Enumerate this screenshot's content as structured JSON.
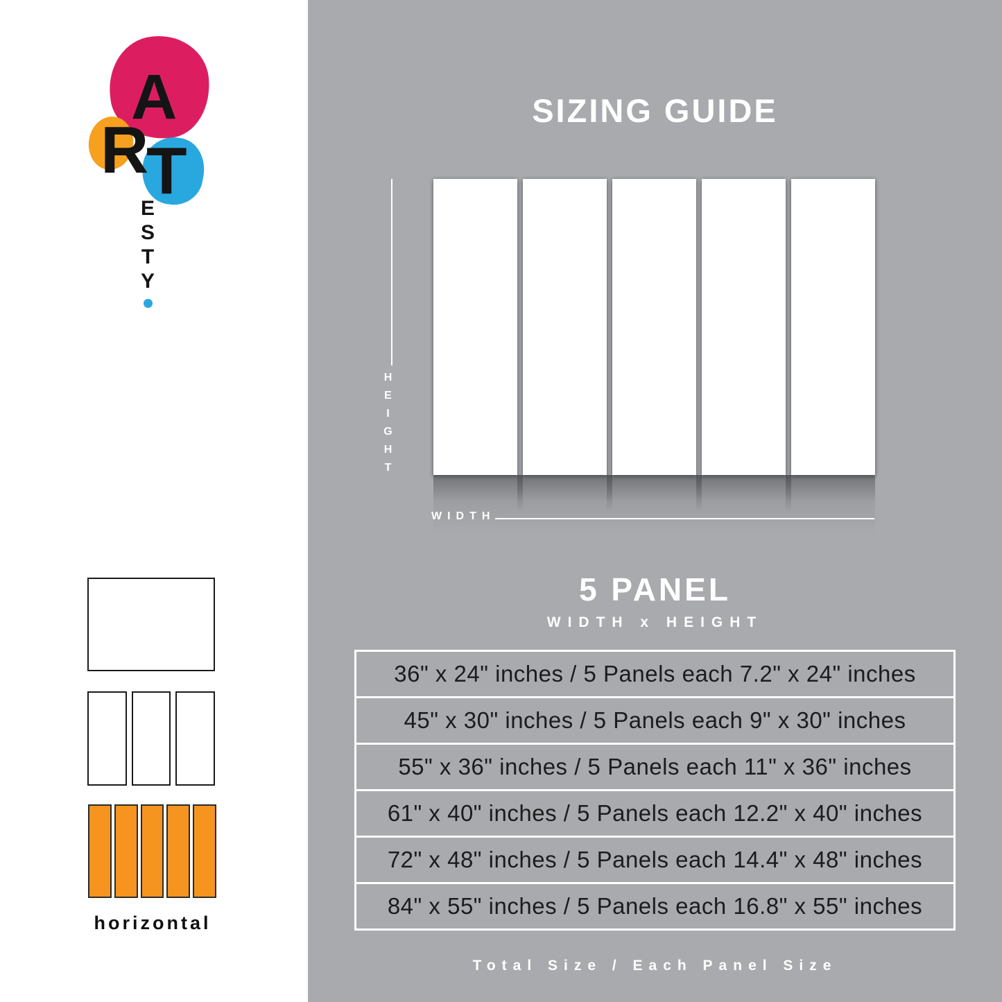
{
  "page": {
    "background_left": "#FFFFFF",
    "background_right": "#A8AAAD"
  },
  "logo": {
    "letter_a": "A",
    "letter_r": "R",
    "letter_t": "T",
    "vertical_letters": [
      "E",
      "S",
      "T",
      "Y"
    ],
    "colors": {
      "pink": "#DC1E61",
      "orange": "#F5A01F",
      "blue": "#29A8E0",
      "dot_blue": "#29A8E0"
    }
  },
  "layout_options": {
    "orientation_label": "horizontal",
    "panel_fill_orange": "#F5941F"
  },
  "guide": {
    "title": "SIZING GUIDE",
    "height_axis": "HEIGHT",
    "width_axis": "WIDTH",
    "panel_heading": "5 PANEL",
    "dimension_label": "WIDTH x HEIGHT",
    "footer": "Total Size / Each Panel Size",
    "panel_count": 5
  },
  "size_table": {
    "rows": [
      "36\" x 24\" inches / 5 Panels each 7.2\" x 24\" inches",
      "45\" x 30\" inches / 5 Panels each 9\" x 30\" inches",
      "55\" x 36\" inches / 5 Panels each 11\" x 36\" inches",
      "61\" x 40\" inches / 5 Panels each 12.2\" x 40\" inches",
      "72\" x 48\" inches / 5 Panels each 14.4\" x 48\" inches",
      "84\" x 55\" inches / 5 Panels each 16.8\" x 55\" inches"
    ]
  }
}
